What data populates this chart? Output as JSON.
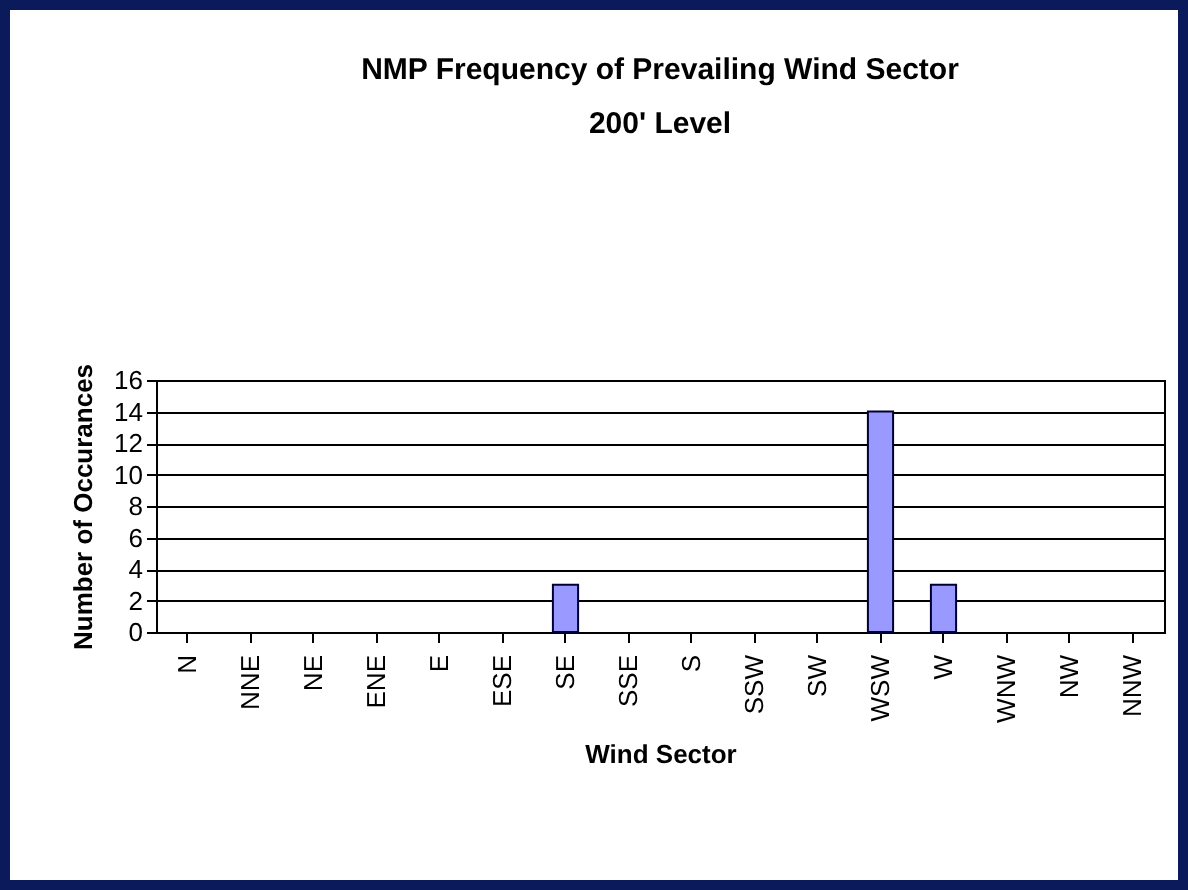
{
  "chart_data": {
    "type": "bar",
    "title": "NMP Frequency of Prevailing Wind Sector",
    "subtitle": "200' Level",
    "xlabel": "Wind Sector",
    "ylabel": "Number of Occurances",
    "categories": [
      "N",
      "NNE",
      "NE",
      "ENE",
      "E",
      "ESE",
      "SE",
      "SSE",
      "S",
      "SSW",
      "SW",
      "WSW",
      "W",
      "WNW",
      "NW",
      "NNW"
    ],
    "values": [
      0,
      0,
      0,
      0,
      0,
      0,
      3,
      0,
      0,
      0,
      0,
      14,
      3,
      0,
      0,
      0
    ],
    "color": "#9999ff",
    "ylim": [
      0,
      16
    ],
    "yticks": [
      0,
      2,
      4,
      6,
      8,
      10,
      12,
      14,
      16
    ],
    "grid": "y"
  }
}
